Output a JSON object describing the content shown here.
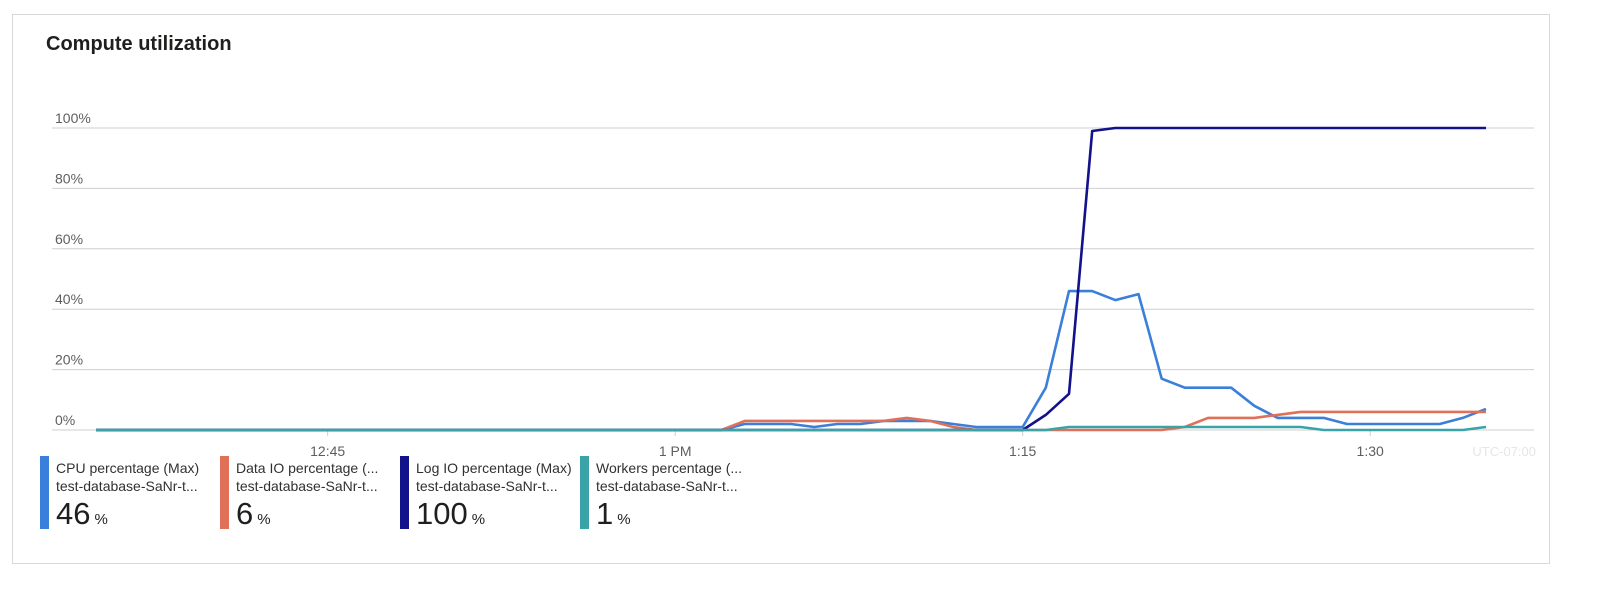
{
  "title": "Compute utilization",
  "timezone": "UTC-07:00",
  "colors": {
    "cpu": "#3a7fd9",
    "data_io": "#e07058",
    "log_io": "#12128a",
    "workers": "#3aa3a8",
    "grid": "#cfcfcf",
    "axis_text": "#605e5c"
  },
  "chart_data": {
    "type": "line",
    "title": "Compute utilization",
    "x_unit": "minutes after 12:35 PM",
    "x_range": [
      0,
      60
    ],
    "ylim": [
      0,
      100
    ],
    "y_ticks": [
      "0%",
      "20%",
      "40%",
      "60%",
      "80%",
      "100%"
    ],
    "x_ticks": [
      {
        "label": "12:45",
        "x": 10
      },
      {
        "label": "1 PM",
        "x": 25
      },
      {
        "label": "1:15",
        "x": 40
      },
      {
        "label": "1:30",
        "x": 55
      }
    ],
    "grid": true,
    "x": [
      0,
      1,
      2,
      3,
      4,
      5,
      6,
      7,
      8,
      9,
      10,
      11,
      12,
      13,
      14,
      15,
      16,
      17,
      18,
      19,
      20,
      21,
      22,
      23,
      24,
      25,
      26,
      27,
      28,
      29,
      30,
      31,
      32,
      33,
      34,
      35,
      36,
      37,
      38,
      39,
      40,
      41,
      42,
      43,
      44,
      45,
      46,
      47,
      48,
      49,
      50,
      51,
      52,
      53,
      54,
      55,
      56,
      57,
      58,
      59,
      60
    ],
    "series": [
      {
        "name": "CPU percentage (Max)",
        "color_key": "cpu",
        "values": [
          0,
          0,
          0,
          0,
          0,
          0,
          0,
          0,
          0,
          0,
          0,
          0,
          0,
          0,
          0,
          0,
          0,
          0,
          0,
          0,
          0,
          0,
          0,
          0,
          0,
          0,
          0,
          0,
          2,
          2,
          2,
          1,
          2,
          2,
          3,
          3,
          3,
          2,
          1,
          1,
          1,
          14,
          46,
          46,
          43,
          45,
          17,
          14,
          14,
          14,
          8,
          4,
          4,
          4,
          2,
          2,
          2,
          2,
          2,
          4,
          7
        ]
      },
      {
        "name": "Data IO percentage (...",
        "color_key": "data_io",
        "values": [
          0,
          0,
          0,
          0,
          0,
          0,
          0,
          0,
          0,
          0,
          0,
          0,
          0,
          0,
          0,
          0,
          0,
          0,
          0,
          0,
          0,
          0,
          0,
          0,
          0,
          0,
          0,
          0,
          3,
          3,
          3,
          3,
          3,
          3,
          3,
          4,
          3,
          1,
          0,
          0,
          0,
          0,
          0,
          0,
          0,
          0,
          0,
          1,
          4,
          4,
          4,
          5,
          6,
          6,
          6,
          6,
          6,
          6,
          6,
          6,
          6
        ]
      },
      {
        "name": "Log IO percentage (Max)",
        "color_key": "log_io",
        "values": [
          0,
          0,
          0,
          0,
          0,
          0,
          0,
          0,
          0,
          0,
          0,
          0,
          0,
          0,
          0,
          0,
          0,
          0,
          0,
          0,
          0,
          0,
          0,
          0,
          0,
          0,
          0,
          0,
          0,
          0,
          0,
          0,
          0,
          0,
          0,
          0,
          0,
          0,
          0,
          0,
          0,
          5,
          12,
          99,
          100,
          100,
          100,
          100,
          100,
          100,
          100,
          100,
          100,
          100,
          100,
          100,
          100,
          100,
          100,
          100,
          100
        ]
      },
      {
        "name": "Workers percentage (...",
        "color_key": "workers",
        "values": [
          0,
          0,
          0,
          0,
          0,
          0,
          0,
          0,
          0,
          0,
          0,
          0,
          0,
          0,
          0,
          0,
          0,
          0,
          0,
          0,
          0,
          0,
          0,
          0,
          0,
          0,
          0,
          0,
          0,
          0,
          0,
          0,
          0,
          0,
          0,
          0,
          0,
          0,
          0,
          0,
          0,
          0,
          1,
          1,
          1,
          1,
          1,
          1,
          1,
          1,
          1,
          1,
          1,
          0,
          0,
          0,
          0,
          0,
          0,
          0,
          1
        ]
      }
    ]
  },
  "legend": [
    {
      "name": "CPU percentage (Max)",
      "sub": "test-database-SaNr-t...",
      "value": "46",
      "unit": "%",
      "color_key": "cpu"
    },
    {
      "name": "Data IO percentage (...",
      "sub": "test-database-SaNr-t...",
      "value": "6",
      "unit": "%",
      "color_key": "data_io"
    },
    {
      "name": "Log IO percentage (Max)",
      "sub": "test-database-SaNr-t...",
      "value": "100",
      "unit": "%",
      "color_key": "log_io"
    },
    {
      "name": "Workers percentage (...",
      "sub": "test-database-SaNr-t...",
      "value": "1",
      "unit": "%",
      "color_key": "workers"
    }
  ]
}
